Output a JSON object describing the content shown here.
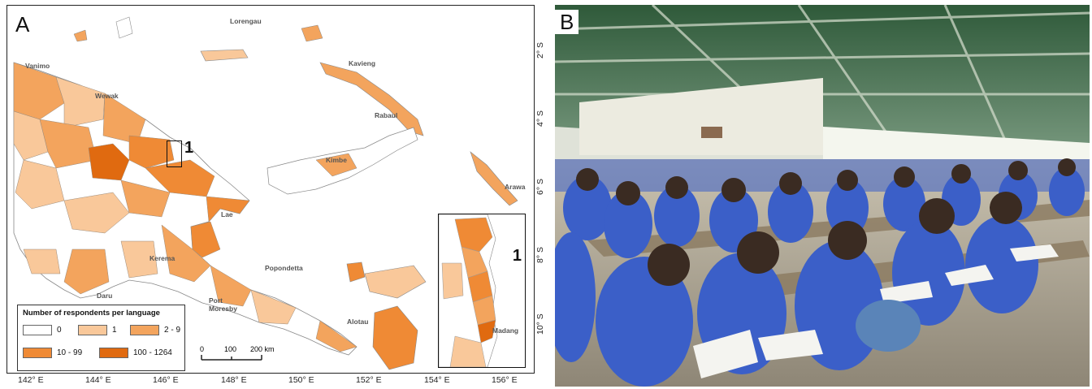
{
  "panel_a": {
    "letter": "A",
    "legend": {
      "title": "Number of respondents per language",
      "items": [
        {
          "label": "0",
          "color": "#ffffff"
        },
        {
          "label": "1",
          "color": "#f9c89a"
        },
        {
          "label": "2 - 9",
          "color": "#f3a45d"
        },
        {
          "label": "10 - 99",
          "color": "#ef8a35"
        },
        {
          "label": "100 - 1264",
          "color": "#e06a10"
        }
      ]
    },
    "scale": {
      "ticks": [
        "0",
        "100",
        "200 km"
      ]
    },
    "x_ticks": [
      "142° E",
      "144° E",
      "146° E",
      "148° E",
      "150° E",
      "152° E",
      "154° E",
      "156° E"
    ],
    "y_ticks": [
      "2° S",
      "4° S",
      "6° S",
      "8° S",
      "10° S"
    ],
    "towns": [
      "Vanimo",
      "Wewak",
      "Lorengau",
      "Kavieng",
      "Rabaul",
      "Kimbe",
      "Arawa",
      "Lae",
      "Kerema",
      "Popondetta",
      "Port Moresby",
      "Daru",
      "Alotau"
    ],
    "inset": {
      "number": "1",
      "town": "Madang"
    },
    "box_number": "1"
  },
  "panel_b": {
    "letter": "B",
    "colors": {
      "uniform": "#3b5fc8",
      "roof": "#3f6d48",
      "wall": "#e9eadf",
      "floor": "#b8b0a0"
    }
  }
}
